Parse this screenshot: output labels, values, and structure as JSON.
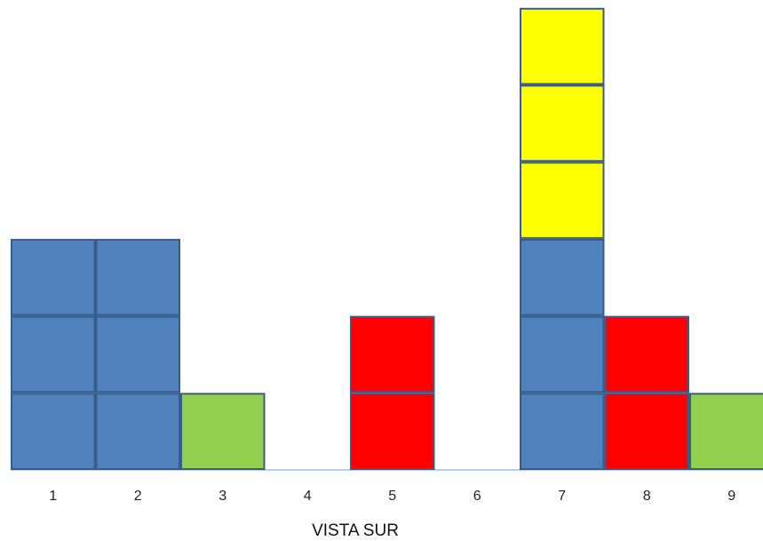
{
  "caption": "VISTA SUR",
  "colors": {
    "blue": "#4f81bd",
    "red": "#ff0000",
    "green": "#92d050",
    "yellow": "#ffff00",
    "outline": "#385d8a",
    "baseline": "#b9cde5"
  },
  "columns": [
    {
      "label": "1",
      "blocks": [
        "blue",
        "blue",
        "blue"
      ]
    },
    {
      "label": "2",
      "blocks": [
        "blue",
        "blue",
        "blue"
      ]
    },
    {
      "label": "3",
      "blocks": [
        "green"
      ]
    },
    {
      "label": "4",
      "blocks": []
    },
    {
      "label": "5",
      "blocks": [
        "red",
        "red"
      ]
    },
    {
      "label": "6",
      "blocks": []
    },
    {
      "label": "7",
      "blocks": [
        "blue",
        "blue",
        "blue",
        "yellow",
        "yellow",
        "yellow"
      ]
    },
    {
      "label": "8",
      "blocks": [
        "red",
        "red"
      ]
    },
    {
      "label": "9",
      "blocks": [
        "green"
      ]
    }
  ]
}
